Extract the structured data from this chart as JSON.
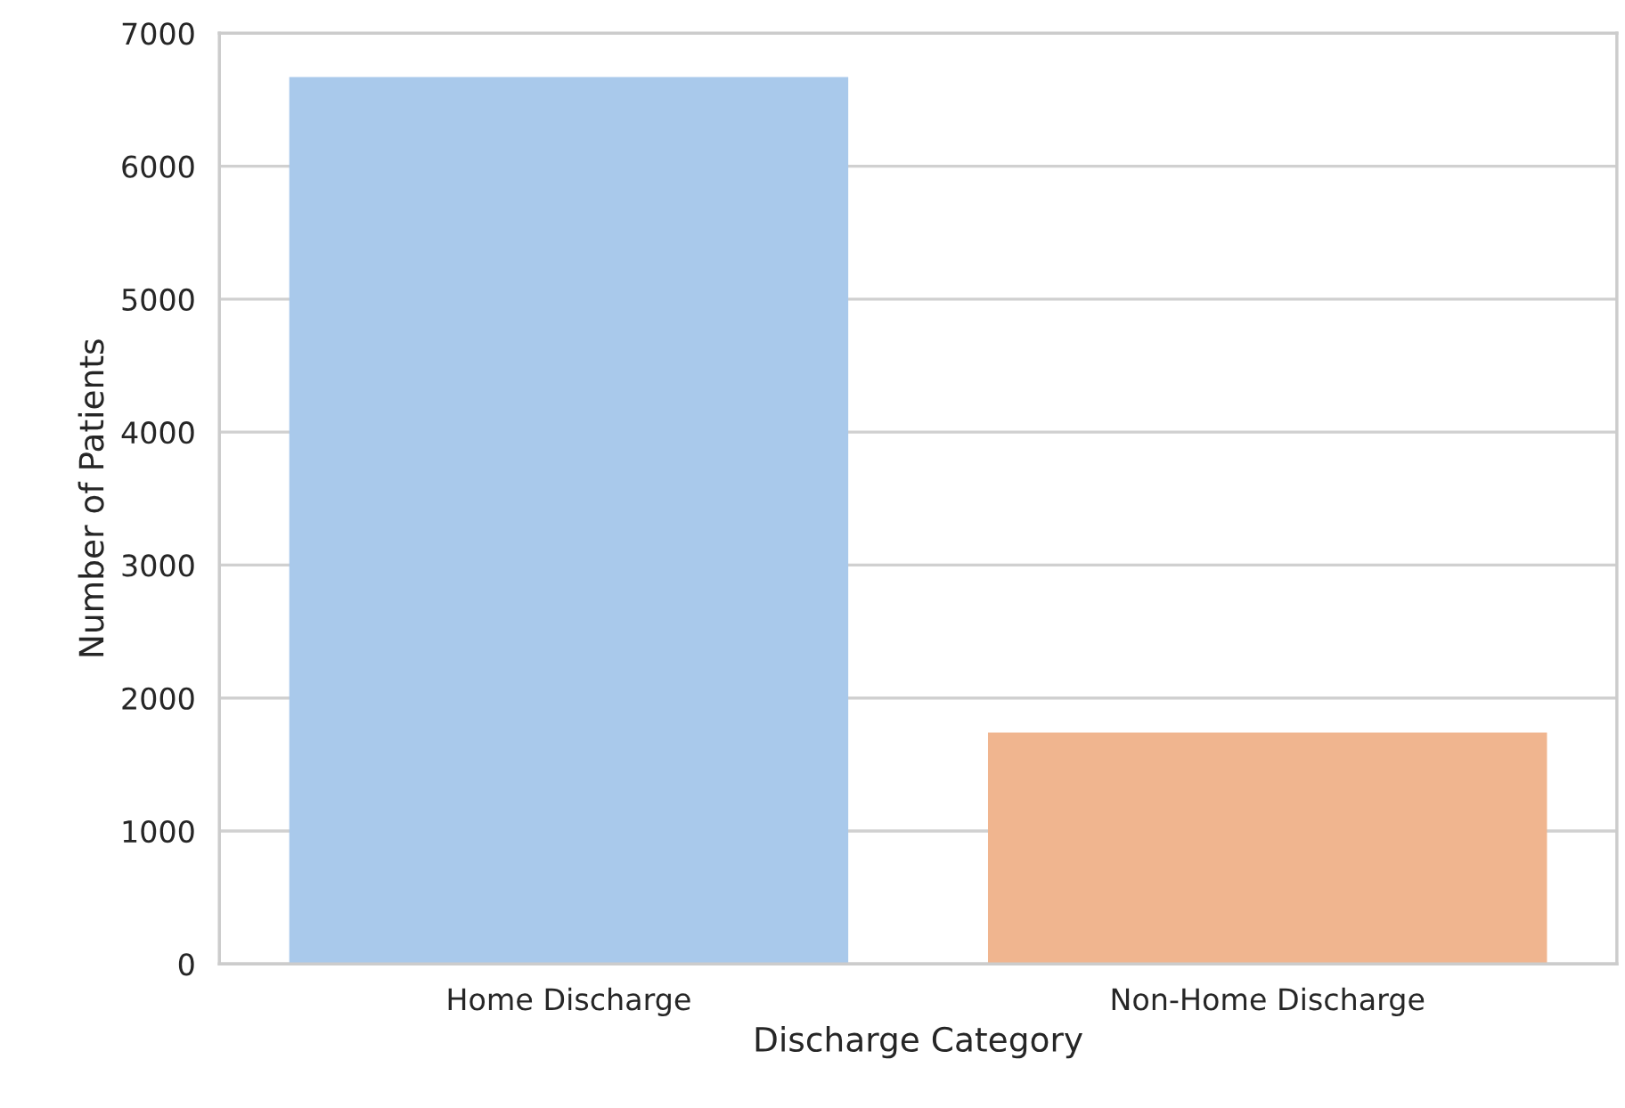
{
  "chart_data": {
    "type": "bar",
    "xlabel": "Discharge Category",
    "ylabel": "Number of Patients",
    "categories": [
      "Home Discharge",
      "Non-Home Discharge"
    ],
    "values": [
      6670,
      1740
    ],
    "colors": [
      "#a9c9eb",
      "#f0b58f"
    ],
    "ylim": [
      0,
      7000
    ],
    "yticks": [
      0,
      1000,
      2000,
      3000,
      4000,
      5000,
      6000,
      7000
    ],
    "grid": "y"
  }
}
